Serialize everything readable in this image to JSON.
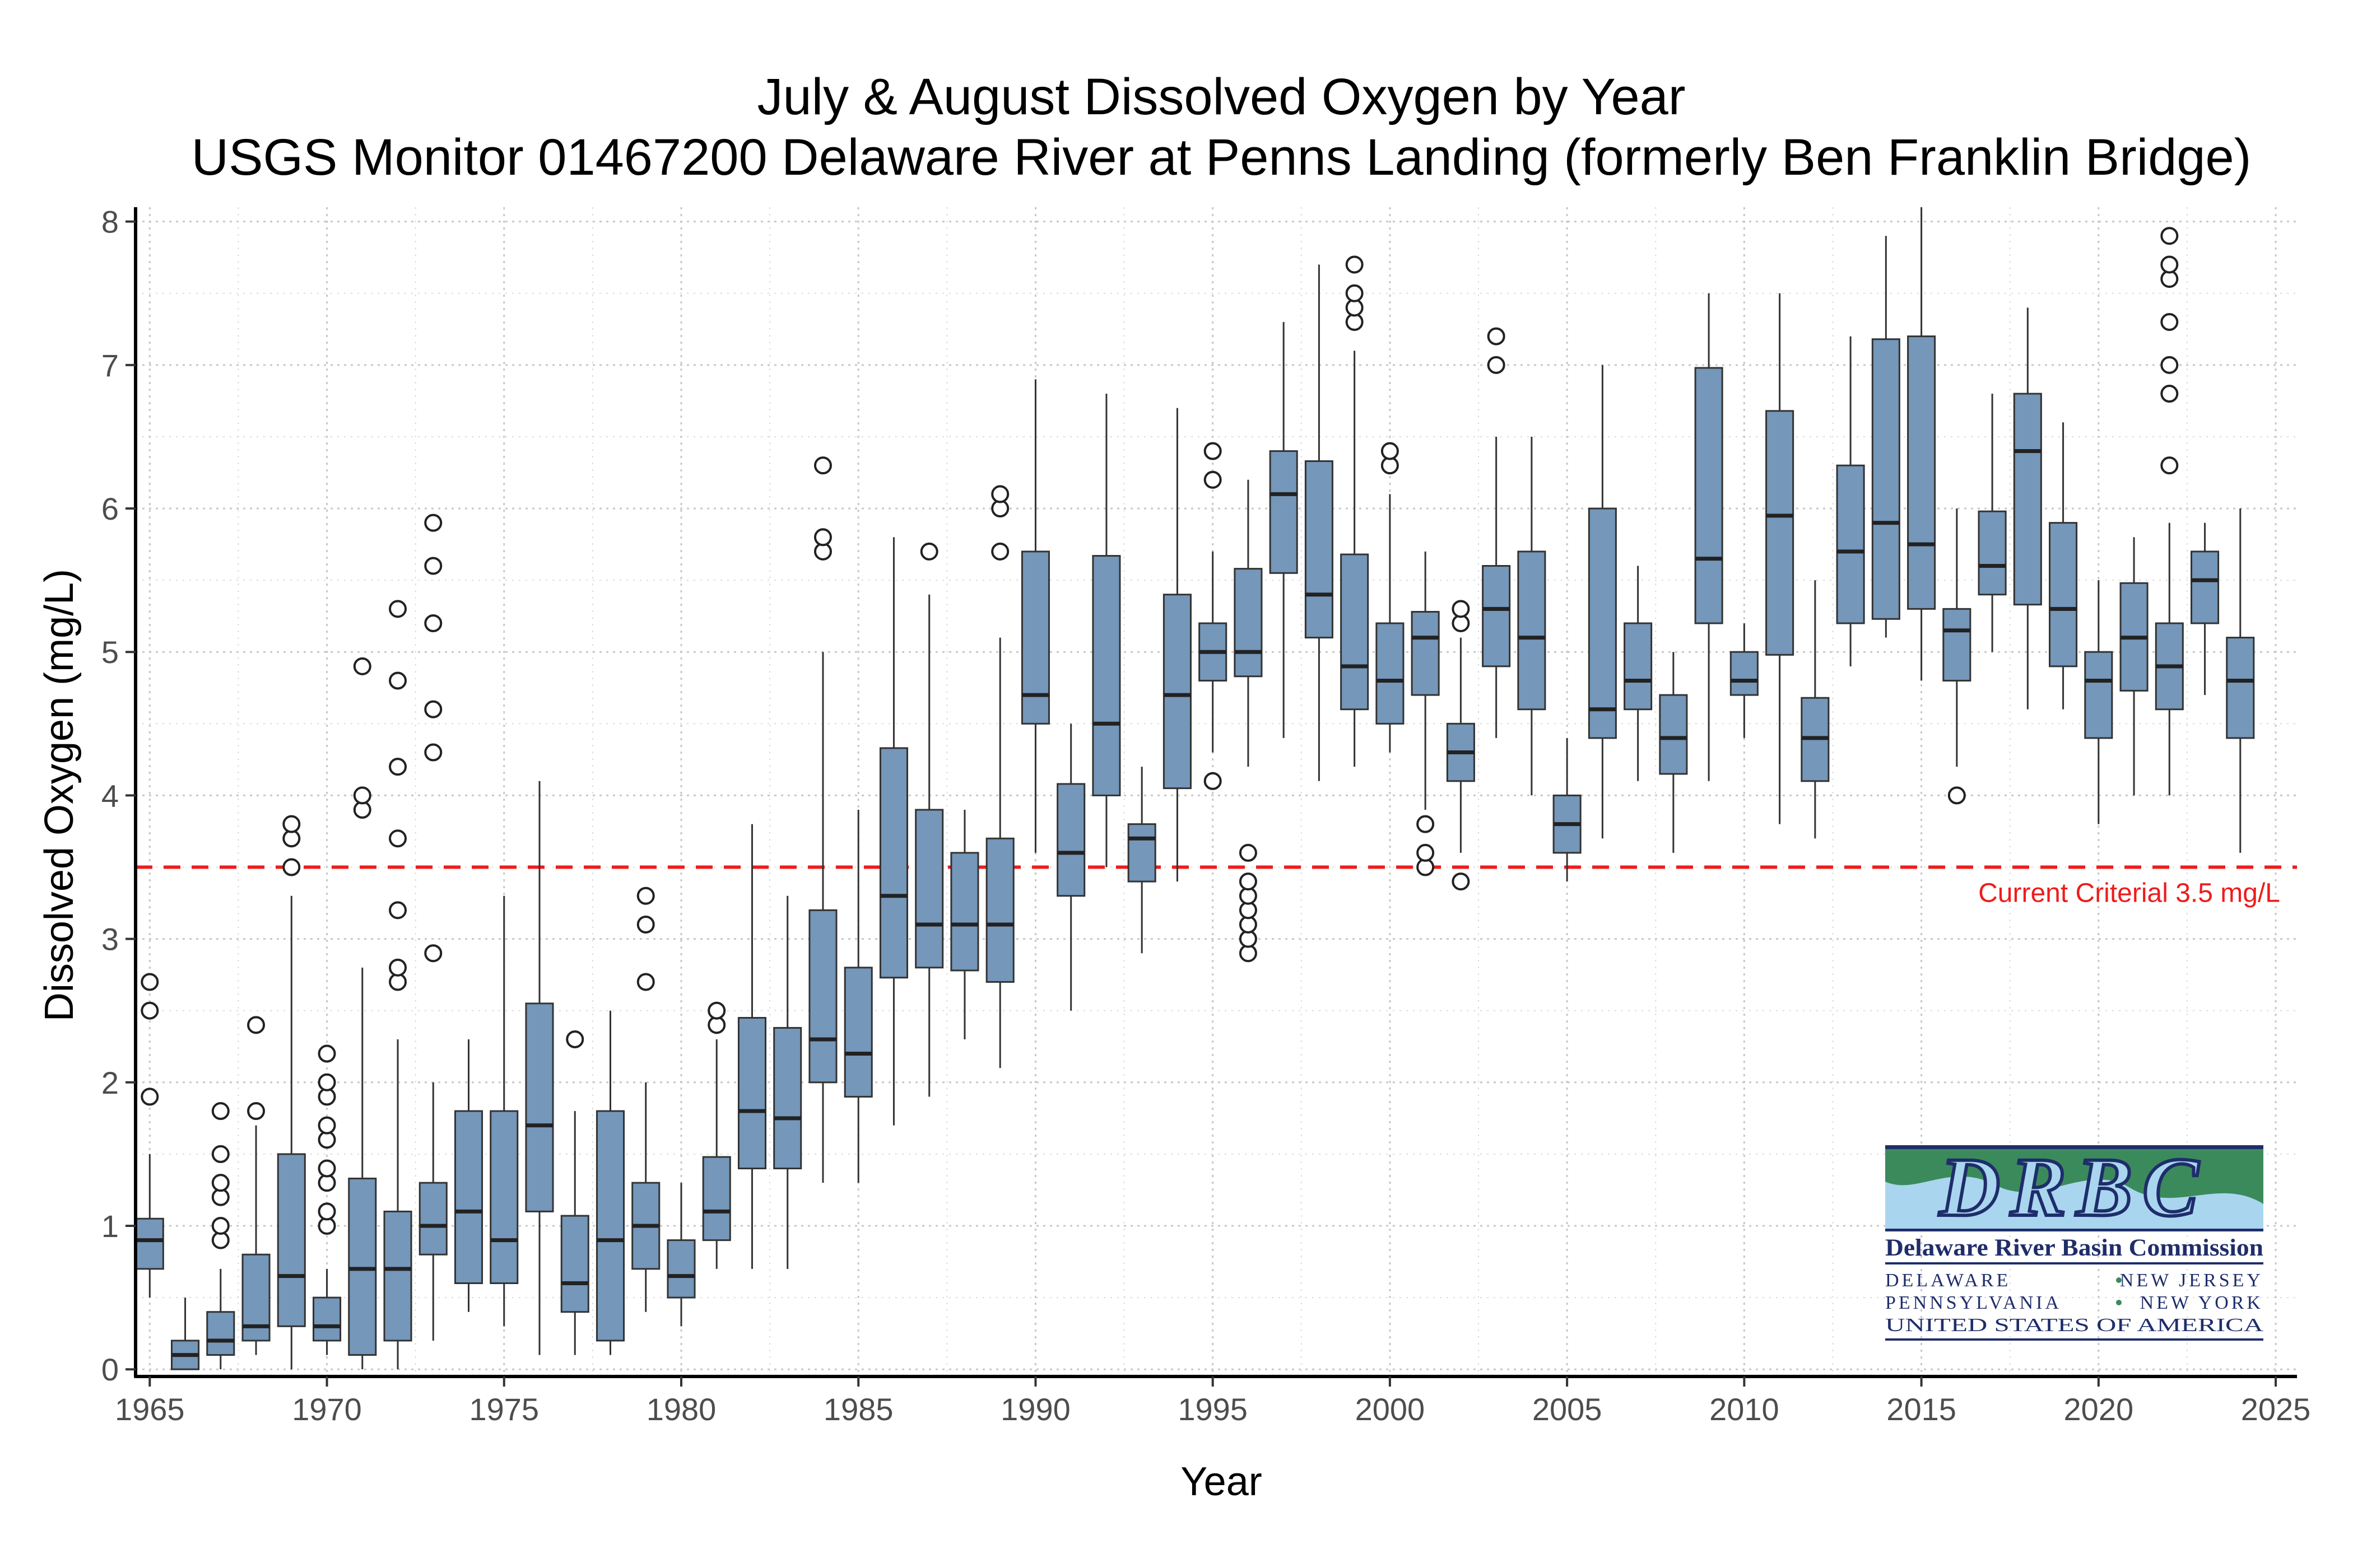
{
  "chart_data": {
    "type": "box",
    "title": "July & August Dissolved Oxygen by Year",
    "subtitle": "USGS Monitor 01467200 Delaware River at Penns Landing (formerly Ben Franklin Bridge)",
    "xlabel": "Year",
    "ylabel": "Dissolved Oxygen (mg/L)",
    "xlim": [
      1964.6,
      2025.6
    ],
    "ylim": [
      -0.05,
      8.1
    ],
    "x_ticks": [
      1965,
      1970,
      1975,
      1980,
      1985,
      1990,
      1995,
      2000,
      2005,
      2010,
      2015,
      2020,
      2025
    ],
    "y_ticks": [
      0,
      1,
      2,
      3,
      4,
      5,
      6,
      7,
      8
    ],
    "grid": true,
    "box_color": "#7497BA",
    "outline_color": "#333333",
    "reference_line": {
      "y": 3.5,
      "label": "Current Criterial 3.5 mg/L",
      "color": "#EE1C1C"
    },
    "boxes": [
      {
        "year": 1965,
        "min": 0.5,
        "q1": 0.7,
        "median": 0.9,
        "q3": 1.05,
        "max": 1.5,
        "outliers": [
          1.9,
          2.5,
          2.7
        ]
      },
      {
        "year": 1966,
        "min": 0.0,
        "q1": 0.0,
        "median": 0.1,
        "q3": 0.2,
        "max": 0.5,
        "outliers": []
      },
      {
        "year": 1967,
        "min": 0.0,
        "q1": 0.1,
        "median": 0.2,
        "q3": 0.4,
        "max": 0.7,
        "outliers": [
          0.9,
          1.0,
          1.2,
          1.3,
          1.5,
          1.8
        ]
      },
      {
        "year": 1968,
        "min": 0.1,
        "q1": 0.2,
        "median": 0.3,
        "q3": 0.8,
        "max": 1.7,
        "outliers": [
          1.8,
          2.4
        ]
      },
      {
        "year": 1969,
        "min": 0.0,
        "q1": 0.3,
        "median": 0.65,
        "q3": 1.5,
        "max": 3.3,
        "outliers": [
          3.5,
          3.7,
          3.8
        ]
      },
      {
        "year": 1970,
        "min": 0.1,
        "q1": 0.2,
        "median": 0.3,
        "q3": 0.5,
        "max": 0.7,
        "outliers": [
          1.0,
          1.1,
          1.3,
          1.4,
          1.6,
          1.7,
          1.9,
          2.0,
          2.2
        ]
      },
      {
        "year": 1971,
        "min": 0.0,
        "q1": 0.1,
        "median": 0.7,
        "q3": 1.33,
        "max": 2.8,
        "outliers": [
          3.9,
          4.0,
          4.9
        ]
      },
      {
        "year": 1972,
        "min": 0.0,
        "q1": 0.2,
        "median": 0.7,
        "q3": 1.1,
        "max": 2.3,
        "outliers": [
          2.7,
          2.8,
          3.2,
          3.7,
          4.2,
          4.8,
          5.3
        ]
      },
      {
        "year": 1973,
        "min": 0.2,
        "q1": 0.8,
        "median": 1.0,
        "q3": 1.3,
        "max": 2.0,
        "outliers": [
          2.9,
          4.3,
          4.6,
          5.2,
          5.6,
          5.9
        ]
      },
      {
        "year": 1974,
        "min": 0.4,
        "q1": 0.6,
        "median": 1.1,
        "q3": 1.8,
        "max": 2.3,
        "outliers": []
      },
      {
        "year": 1975,
        "min": 0.3,
        "q1": 0.6,
        "median": 0.9,
        "q3": 1.8,
        "max": 3.3,
        "outliers": []
      },
      {
        "year": 1976,
        "min": 0.1,
        "q1": 1.1,
        "median": 1.7,
        "q3": 2.55,
        "max": 4.1,
        "outliers": []
      },
      {
        "year": 1977,
        "min": 0.1,
        "q1": 0.4,
        "median": 0.6,
        "q3": 1.07,
        "max": 1.8,
        "outliers": [
          2.3
        ]
      },
      {
        "year": 1978,
        "min": 0.1,
        "q1": 0.2,
        "median": 0.9,
        "q3": 1.8,
        "max": 2.5,
        "outliers": []
      },
      {
        "year": 1979,
        "min": 0.4,
        "q1": 0.7,
        "median": 1.0,
        "q3": 1.3,
        "max": 2.0,
        "outliers": [
          2.7,
          3.1,
          3.3
        ]
      },
      {
        "year": 1980,
        "min": 0.3,
        "q1": 0.5,
        "median": 0.65,
        "q3": 0.9,
        "max": 1.3,
        "outliers": []
      },
      {
        "year": 1981,
        "min": 0.7,
        "q1": 0.9,
        "median": 1.1,
        "q3": 1.48,
        "max": 2.3,
        "outliers": [
          2.4,
          2.5
        ]
      },
      {
        "year": 1982,
        "min": 0.7,
        "q1": 1.4,
        "median": 1.8,
        "q3": 2.45,
        "max": 3.8,
        "outliers": []
      },
      {
        "year": 1983,
        "min": 0.7,
        "q1": 1.4,
        "median": 1.75,
        "q3": 2.38,
        "max": 3.3,
        "outliers": []
      },
      {
        "year": 1984,
        "min": 1.3,
        "q1": 2.0,
        "median": 2.3,
        "q3": 3.2,
        "max": 5.0,
        "outliers": [
          5.7,
          5.8,
          6.3
        ]
      },
      {
        "year": 1985,
        "min": 1.3,
        "q1": 1.9,
        "median": 2.2,
        "q3": 2.8,
        "max": 3.9,
        "outliers": []
      },
      {
        "year": 1986,
        "min": 1.7,
        "q1": 2.73,
        "median": 3.3,
        "q3": 4.33,
        "max": 5.8,
        "outliers": []
      },
      {
        "year": 1987,
        "min": 1.9,
        "q1": 2.8,
        "median": 3.1,
        "q3": 3.9,
        "max": 5.4,
        "outliers": [
          5.7
        ]
      },
      {
        "year": 1988,
        "min": 2.3,
        "q1": 2.78,
        "median": 3.1,
        "q3": 3.6,
        "max": 3.9,
        "outliers": []
      },
      {
        "year": 1989,
        "min": 2.1,
        "q1": 2.7,
        "median": 3.1,
        "q3": 3.7,
        "max": 5.1,
        "outliers": [
          5.7,
          6.0,
          6.1
        ]
      },
      {
        "year": 1990,
        "min": 3.6,
        "q1": 4.5,
        "median": 4.7,
        "q3": 5.7,
        "max": 6.9,
        "outliers": []
      },
      {
        "year": 1991,
        "min": 2.5,
        "q1": 3.3,
        "median": 3.6,
        "q3": 4.08,
        "max": 4.5,
        "outliers": []
      },
      {
        "year": 1992,
        "min": 3.5,
        "q1": 4.0,
        "median": 4.5,
        "q3": 5.67,
        "max": 6.8,
        "outliers": []
      },
      {
        "year": 1993,
        "min": 2.9,
        "q1": 3.4,
        "median": 3.7,
        "q3": 3.8,
        "max": 4.2,
        "outliers": []
      },
      {
        "year": 1994,
        "min": 3.4,
        "q1": 4.05,
        "median": 4.7,
        "q3": 5.4,
        "max": 6.7,
        "outliers": []
      },
      {
        "year": 1995,
        "min": 4.3,
        "q1": 4.8,
        "median": 5.0,
        "q3": 5.2,
        "max": 5.7,
        "outliers": [
          4.1,
          6.2,
          6.4
        ]
      },
      {
        "year": 1996,
        "min": 4.2,
        "q1": 4.83,
        "median": 5.0,
        "q3": 5.58,
        "max": 6.2,
        "outliers": [
          2.9,
          3.0,
          3.1,
          3.2,
          3.3,
          3.4,
          3.6
        ]
      },
      {
        "year": 1997,
        "min": 4.4,
        "q1": 5.55,
        "median": 6.1,
        "q3": 6.4,
        "max": 7.3,
        "outliers": []
      },
      {
        "year": 1998,
        "min": 4.1,
        "q1": 5.1,
        "median": 5.4,
        "q3": 6.33,
        "max": 7.7,
        "outliers": []
      },
      {
        "year": 1999,
        "min": 4.2,
        "q1": 4.6,
        "median": 4.9,
        "q3": 5.68,
        "max": 7.1,
        "outliers": [
          7.3,
          7.4,
          7.5,
          7.7
        ]
      },
      {
        "year": 2000,
        "min": 4.3,
        "q1": 4.5,
        "median": 4.8,
        "q3": 5.2,
        "max": 6.1,
        "outliers": [
          6.3,
          6.4
        ]
      },
      {
        "year": 2001,
        "min": 3.9,
        "q1": 4.7,
        "median": 5.1,
        "q3": 5.28,
        "max": 5.7,
        "outliers": [
          3.5,
          3.6,
          3.8
        ]
      },
      {
        "year": 2002,
        "min": 3.6,
        "q1": 4.1,
        "median": 4.3,
        "q3": 4.5,
        "max": 5.1,
        "outliers": [
          3.4,
          5.2,
          5.3
        ]
      },
      {
        "year": 2003,
        "min": 4.4,
        "q1": 4.9,
        "median": 5.3,
        "q3": 5.6,
        "max": 6.5,
        "outliers": [
          7.0,
          7.2
        ]
      },
      {
        "year": 2004,
        "min": 4.0,
        "q1": 4.6,
        "median": 5.1,
        "q3": 5.7,
        "max": 6.5,
        "outliers": []
      },
      {
        "year": 2005,
        "min": 3.4,
        "q1": 3.6,
        "median": 3.8,
        "q3": 4.0,
        "max": 4.4,
        "outliers": []
      },
      {
        "year": 2006,
        "min": 3.7,
        "q1": 4.4,
        "median": 4.6,
        "q3": 6.0,
        "max": 7.0,
        "outliers": []
      },
      {
        "year": 2007,
        "min": 4.1,
        "q1": 4.6,
        "median": 4.8,
        "q3": 5.2,
        "max": 5.6,
        "outliers": []
      },
      {
        "year": 2008,
        "min": 3.6,
        "q1": 4.15,
        "median": 4.4,
        "q3": 4.7,
        "max": 5.0,
        "outliers": []
      },
      {
        "year": 2009,
        "min": 4.1,
        "q1": 5.2,
        "median": 5.65,
        "q3": 6.98,
        "max": 7.5,
        "outliers": []
      },
      {
        "year": 2010,
        "min": 4.4,
        "q1": 4.7,
        "median": 4.8,
        "q3": 5.0,
        "max": 5.2,
        "outliers": []
      },
      {
        "year": 2011,
        "min": 3.8,
        "q1": 4.98,
        "median": 5.95,
        "q3": 6.68,
        "max": 7.5,
        "outliers": []
      },
      {
        "year": 2012,
        "min": 3.7,
        "q1": 4.1,
        "median": 4.4,
        "q3": 4.68,
        "max": 5.5,
        "outliers": []
      },
      {
        "year": 2013,
        "min": 4.9,
        "q1": 5.2,
        "median": 5.7,
        "q3": 6.3,
        "max": 7.2,
        "outliers": []
      },
      {
        "year": 2014,
        "min": 5.1,
        "q1": 5.23,
        "median": 5.9,
        "q3": 7.18,
        "max": 7.9,
        "outliers": []
      },
      {
        "year": 2015,
        "min": 4.8,
        "q1": 5.3,
        "median": 5.75,
        "q3": 7.2,
        "max": 8.1,
        "outliers": []
      },
      {
        "year": 2016,
        "min": 4.2,
        "q1": 4.8,
        "median": 5.15,
        "q3": 5.3,
        "max": 6.0,
        "outliers": [
          4.0
        ]
      },
      {
        "year": 2017,
        "min": 5.0,
        "q1": 5.4,
        "median": 5.6,
        "q3": 5.98,
        "max": 6.8,
        "outliers": []
      },
      {
        "year": 2018,
        "min": 4.6,
        "q1": 5.33,
        "median": 6.4,
        "q3": 6.8,
        "max": 7.4,
        "outliers": []
      },
      {
        "year": 2019,
        "min": 4.6,
        "q1": 4.9,
        "median": 5.3,
        "q3": 5.9,
        "max": 6.6,
        "outliers": []
      },
      {
        "year": 2020,
        "min": 3.8,
        "q1": 4.4,
        "median": 4.8,
        "q3": 5.0,
        "max": 5.5,
        "outliers": []
      },
      {
        "year": 2021,
        "min": 4.0,
        "q1": 4.73,
        "median": 5.1,
        "q3": 5.48,
        "max": 5.8,
        "outliers": []
      },
      {
        "year": 2022,
        "min": 4.0,
        "q1": 4.6,
        "median": 4.9,
        "q3": 5.2,
        "max": 5.9,
        "outliers": [
          6.3,
          6.8,
          7.0,
          7.3,
          7.6,
          7.7,
          7.9
        ]
      },
      {
        "year": 2023,
        "min": 4.7,
        "q1": 5.2,
        "median": 5.5,
        "q3": 5.7,
        "max": 5.9,
        "outliers": []
      },
      {
        "year": 2024,
        "min": 3.6,
        "q1": 4.4,
        "median": 4.8,
        "q3": 5.1,
        "max": 6.0,
        "outliers": []
      }
    ]
  },
  "logo": {
    "monogram": "DRBC",
    "name": "Delaware River Basin Commission",
    "line1_left": "DELAWARE",
    "line1_right": "NEW JERSEY",
    "line2_left": "PENNSYLVANIA",
    "line2_right": "NEW YORK",
    "line3": "UNITED STATES OF AMERICA",
    "colors": {
      "navy": "#1F2D6B",
      "green": "#3B8A5C",
      "light_blue": "#A9D6EE"
    }
  }
}
